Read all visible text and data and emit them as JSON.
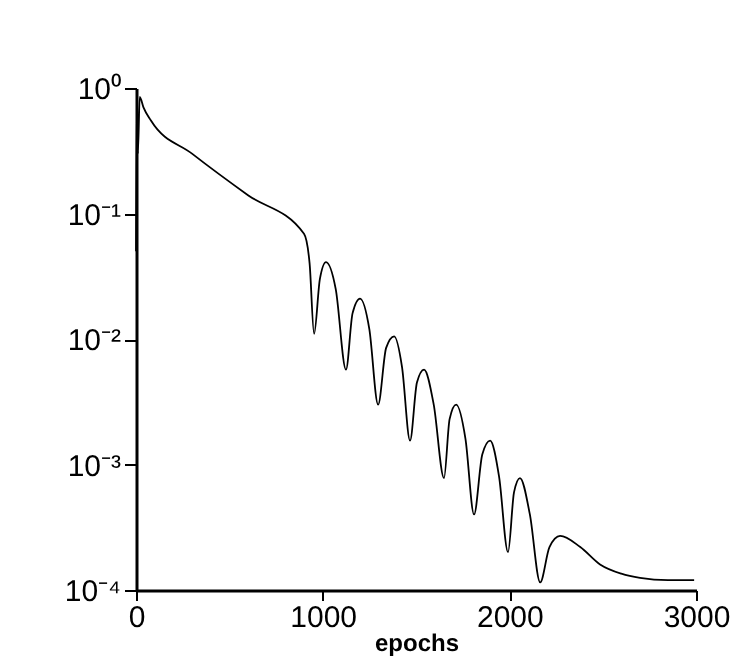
{
  "chart_data": {
    "type": "line",
    "xlabel": "epochs",
    "log": "y",
    "grid": false,
    "xlim": [
      0,
      3000
    ],
    "xticks": [
      0,
      1000,
      2000,
      3000
    ],
    "ylim": [
      0.0001,
      1
    ],
    "yticks": [
      {
        "value": 1,
        "label": "10⁰"
      },
      {
        "value": 0.1,
        "label": "10⁻¹"
      },
      {
        "value": 0.01,
        "label": "10⁻²"
      },
      {
        "value": 0.001,
        "label": "10⁻³"
      },
      {
        "value": 0.0001,
        "label": "10⁻⁴"
      }
    ],
    "series": [
      {
        "color": "#000000",
        "x": [
          0,
          5,
          10,
          20,
          40,
          80,
          300,
          600,
          900,
          930,
          954,
          985,
          1018,
          1070,
          1125,
          1160,
          1200,
          1250,
          1297,
          1340,
          1383,
          1425,
          1468,
          1505,
          1543,
          1595,
          1650,
          1680,
          1715,
          1765,
          1811,
          1855,
          1897,
          1945,
          1993,
          2025,
          2057,
          2110,
          2165,
          2215,
          2272,
          2380,
          2486,
          2600,
          2700,
          2850,
          2990
        ],
        "values": [
          0.05,
          0.9,
          0.3,
          0.85,
          0.7,
          0.55,
          0.3,
          0.14,
          0.069,
          0.04,
          0.011,
          0.03,
          0.041,
          0.025,
          0.0057,
          0.016,
          0.021,
          0.012,
          0.003,
          0.0085,
          0.0105,
          0.006,
          0.00155,
          0.0045,
          0.0057,
          0.003,
          0.00078,
          0.0023,
          0.003,
          0.0016,
          0.0004,
          0.0012,
          0.00155,
          0.0008,
          0.0002,
          0.0006,
          0.00078,
          0.0004,
          0.000115,
          0.00022,
          0.00027,
          0.00022,
          0.00016,
          0.000135,
          0.000125,
          0.00012,
          0.00012
        ]
      }
    ]
  }
}
